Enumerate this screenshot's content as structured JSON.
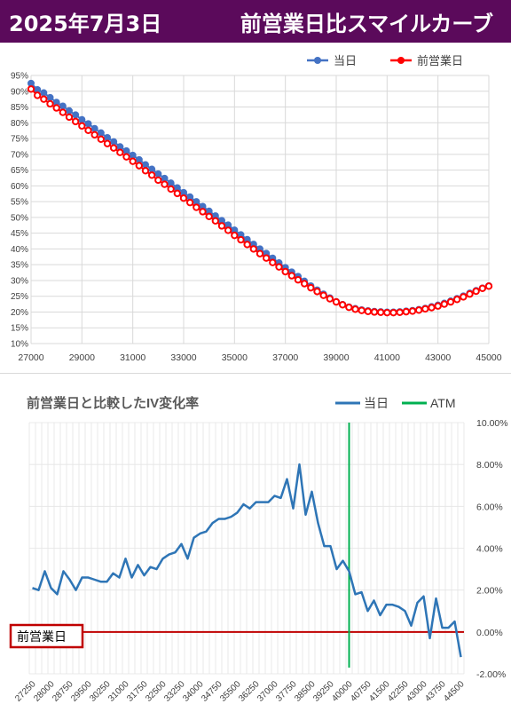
{
  "header": {
    "date": "2025年7月3日",
    "title": "前営業日比スマイルカーブ"
  },
  "chart_data": [
    {
      "type": "scatter",
      "title": "",
      "xlabel": "",
      "ylabel": "",
      "xlim": [
        27000,
        45000
      ],
      "ylim": [
        0.1,
        0.95
      ],
      "x_ticks": [
        "27000",
        "29000",
        "31000",
        "33000",
        "35000",
        "37000",
        "39000",
        "41000",
        "43000",
        "45000"
      ],
      "y_ticks": [
        "10%",
        "15%",
        "20%",
        "25%",
        "30%",
        "35%",
        "40%",
        "45%",
        "50%",
        "55%",
        "60%",
        "65%",
        "70%",
        "75%",
        "80%",
        "85%",
        "90%",
        "95%"
      ],
      "grid": true,
      "legend": "top-right",
      "series": [
        {
          "name": "当日",
          "color": "#4472c4",
          "points": [
            [
              27000,
              0.925
            ],
            [
              27250,
              0.905
            ],
            [
              27500,
              0.895
            ],
            [
              27750,
              0.88
            ],
            [
              28000,
              0.865
            ],
            [
              28250,
              0.853
            ],
            [
              28500,
              0.838
            ],
            [
              28750,
              0.825
            ],
            [
              29000,
              0.81
            ],
            [
              29250,
              0.797
            ],
            [
              29500,
              0.782
            ],
            [
              29750,
              0.768
            ],
            [
              30000,
              0.753
            ],
            [
              30250,
              0.74
            ],
            [
              30500,
              0.724
            ],
            [
              30750,
              0.711
            ],
            [
              31000,
              0.697
            ],
            [
              31250,
              0.683
            ],
            [
              31500,
              0.667
            ],
            [
              31750,
              0.653
            ],
            [
              32000,
              0.638
            ],
            [
              32250,
              0.624
            ],
            [
              32500,
              0.609
            ],
            [
              32750,
              0.594
            ],
            [
              33000,
              0.579
            ],
            [
              33250,
              0.565
            ],
            [
              33500,
              0.55
            ],
            [
              33750,
              0.535
            ],
            [
              34000,
              0.52
            ],
            [
              34250,
              0.505
            ],
            [
              34500,
              0.49
            ],
            [
              34750,
              0.476
            ],
            [
              35000,
              0.46
            ],
            [
              35250,
              0.445
            ],
            [
              35500,
              0.43
            ],
            [
              35750,
              0.415
            ],
            [
              36000,
              0.4
            ],
            [
              36250,
              0.386
            ],
            [
              36500,
              0.371
            ],
            [
              36750,
              0.356
            ],
            [
              37000,
              0.341
            ],
            [
              37250,
              0.327
            ],
            [
              37500,
              0.313
            ],
            [
              37750,
              0.298
            ],
            [
              38000,
              0.283
            ],
            [
              38250,
              0.27
            ],
            [
              38500,
              0.257
            ],
            [
              38750,
              0.245
            ],
            [
              39000,
              0.233
            ],
            [
              39250,
              0.224
            ],
            [
              39500,
              0.216
            ],
            [
              39750,
              0.211
            ],
            [
              40000,
              0.207
            ],
            [
              40250,
              0.204
            ],
            [
              40500,
              0.202
            ],
            [
              40750,
              0.201
            ],
            [
              41000,
              0.2
            ],
            [
              41250,
              0.2
            ],
            [
              41500,
              0.201
            ],
            [
              41750,
              0.203
            ],
            [
              42000,
              0.205
            ],
            [
              42250,
              0.208
            ],
            [
              42500,
              0.212
            ],
            [
              42750,
              0.217
            ],
            [
              43000,
              0.222
            ],
            [
              43250,
              0.228
            ],
            [
              43500,
              0.235
            ],
            [
              43750,
              0.243
            ],
            [
              44000,
              0.251
            ],
            [
              44250,
              0.26
            ],
            [
              44500,
              0.268
            ],
            [
              44750,
              0.276
            ],
            [
              45000,
              0.283
            ]
          ]
        },
        {
          "name": "前営業日",
          "color": "#ff0000",
          "points": [
            [
              27000,
              0.907
            ],
            [
              27250,
              0.887
            ],
            [
              27500,
              0.875
            ],
            [
              27750,
              0.86
            ],
            [
              28000,
              0.847
            ],
            [
              28250,
              0.833
            ],
            [
              28500,
              0.818
            ],
            [
              28750,
              0.804
            ],
            [
              29000,
              0.79
            ],
            [
              29250,
              0.776
            ],
            [
              29500,
              0.762
            ],
            [
              29750,
              0.748
            ],
            [
              30000,
              0.734
            ],
            [
              30250,
              0.72
            ],
            [
              30500,
              0.706
            ],
            [
              30750,
              0.692
            ],
            [
              31000,
              0.678
            ],
            [
              31250,
              0.664
            ],
            [
              31500,
              0.648
            ],
            [
              31750,
              0.634
            ],
            [
              32000,
              0.618
            ],
            [
              32250,
              0.605
            ],
            [
              32500,
              0.59
            ],
            [
              32750,
              0.576
            ],
            [
              33000,
              0.561
            ],
            [
              33250,
              0.547
            ],
            [
              33500,
              0.532
            ],
            [
              33750,
              0.518
            ],
            [
              34000,
              0.503
            ],
            [
              34250,
              0.489
            ],
            [
              34500,
              0.473
            ],
            [
              34750,
              0.459
            ],
            [
              35000,
              0.443
            ],
            [
              35250,
              0.429
            ],
            [
              35500,
              0.414
            ],
            [
              35750,
              0.4
            ],
            [
              36000,
              0.385
            ],
            [
              36250,
              0.371
            ],
            [
              36500,
              0.357
            ],
            [
              36750,
              0.343
            ],
            [
              37000,
              0.328
            ],
            [
              37250,
              0.315
            ],
            [
              37500,
              0.302
            ],
            [
              37750,
              0.29
            ],
            [
              38000,
              0.277
            ],
            [
              38250,
              0.265
            ],
            [
              38500,
              0.253
            ],
            [
              38750,
              0.242
            ],
            [
              39000,
              0.232
            ],
            [
              39250,
              0.223
            ],
            [
              39500,
              0.215
            ],
            [
              39750,
              0.209
            ],
            [
              40000,
              0.205
            ],
            [
              40250,
              0.202
            ],
            [
              40500,
              0.2
            ],
            [
              40750,
              0.199
            ],
            [
              41000,
              0.198
            ],
            [
              41250,
              0.198
            ],
            [
              41500,
              0.199
            ],
            [
              41750,
              0.201
            ],
            [
              42000,
              0.203
            ],
            [
              42250,
              0.206
            ],
            [
              42500,
              0.21
            ],
            [
              42750,
              0.214
            ],
            [
              43000,
              0.219
            ],
            [
              43250,
              0.225
            ],
            [
              43500,
              0.232
            ],
            [
              43750,
              0.24
            ],
            [
              44000,
              0.248
            ],
            [
              44250,
              0.257
            ],
            [
              44500,
              0.266
            ],
            [
              44750,
              0.275
            ],
            [
              45000,
              0.282
            ]
          ]
        }
      ]
    },
    {
      "type": "line",
      "title": "前営業日と比較したIV変化率",
      "xlabel": "",
      "ylabel": "",
      "ylim": [
        -0.02,
        0.1
      ],
      "y_ticks": [
        "10.00%",
        "8.00%",
        "6.00%",
        "4.00%",
        "2.00%",
        "0.00%",
        "-2.00%"
      ],
      "grid": true,
      "legend": "top-right",
      "x_tick_labels": [
        "27250",
        "28000",
        "28750",
        "29500",
        "30250",
        "31000",
        "31750",
        "32500",
        "33250",
        "34000",
        "34750",
        "35500",
        "36250",
        "37000",
        "37750",
        "38500",
        "39250",
        "40000",
        "40750",
        "41500",
        "42250",
        "43000",
        "43750",
        "44500"
      ],
      "categories": [
        27250,
        27500,
        27750,
        28000,
        28250,
        28500,
        28750,
        29000,
        29250,
        29500,
        29750,
        30000,
        30250,
        30500,
        30750,
        31000,
        31250,
        31500,
        31750,
        32000,
        32250,
        32500,
        32750,
        33000,
        33250,
        33500,
        33750,
        34000,
        34250,
        34500,
        34750,
        35000,
        35250,
        35500,
        35750,
        36000,
        36250,
        36500,
        36750,
        37000,
        37250,
        37500,
        37750,
        38000,
        38250,
        38500,
        38750,
        39000,
        39250,
        39500,
        39750,
        40000,
        40250,
        40500,
        40750,
        41000,
        41250,
        41500,
        41750,
        42000,
        42250,
        42500,
        42750,
        43000,
        43250,
        43500,
        43750,
        44000,
        44250,
        44500
      ],
      "series": [
        {
          "name": "当日",
          "color": "#2e75b6",
          "values": [
            0.021,
            0.02,
            0.029,
            0.021,
            0.018,
            0.029,
            0.025,
            0.02,
            0.026,
            0.026,
            0.025,
            0.024,
            0.024,
            0.028,
            0.026,
            0.035,
            0.026,
            0.032,
            0.027,
            0.031,
            0.03,
            0.035,
            0.037,
            0.038,
            0.042,
            0.035,
            0.045,
            0.047,
            0.048,
            0.052,
            0.054,
            0.054,
            0.055,
            0.057,
            0.061,
            0.059,
            0.062,
            0.062,
            0.062,
            0.065,
            0.064,
            0.073,
            0.059,
            0.08,
            0.056,
            0.067,
            0.052,
            0.041,
            0.041,
            0.03,
            0.034,
            0.029,
            0.018,
            0.019,
            0.01,
            0.015,
            0.008,
            0.013,
            0.013,
            0.012,
            0.01,
            0.003,
            0.014,
            0.017,
            -0.003,
            0.016,
            0.002,
            0.002,
            0.005,
            -0.012
          ]
        },
        {
          "name": "ATM",
          "color": "#00b050",
          "x_value": 40000
        }
      ],
      "annotations": [
        {
          "label": "前営業日",
          "y": 0.0,
          "color": "#c00000"
        }
      ]
    }
  ]
}
